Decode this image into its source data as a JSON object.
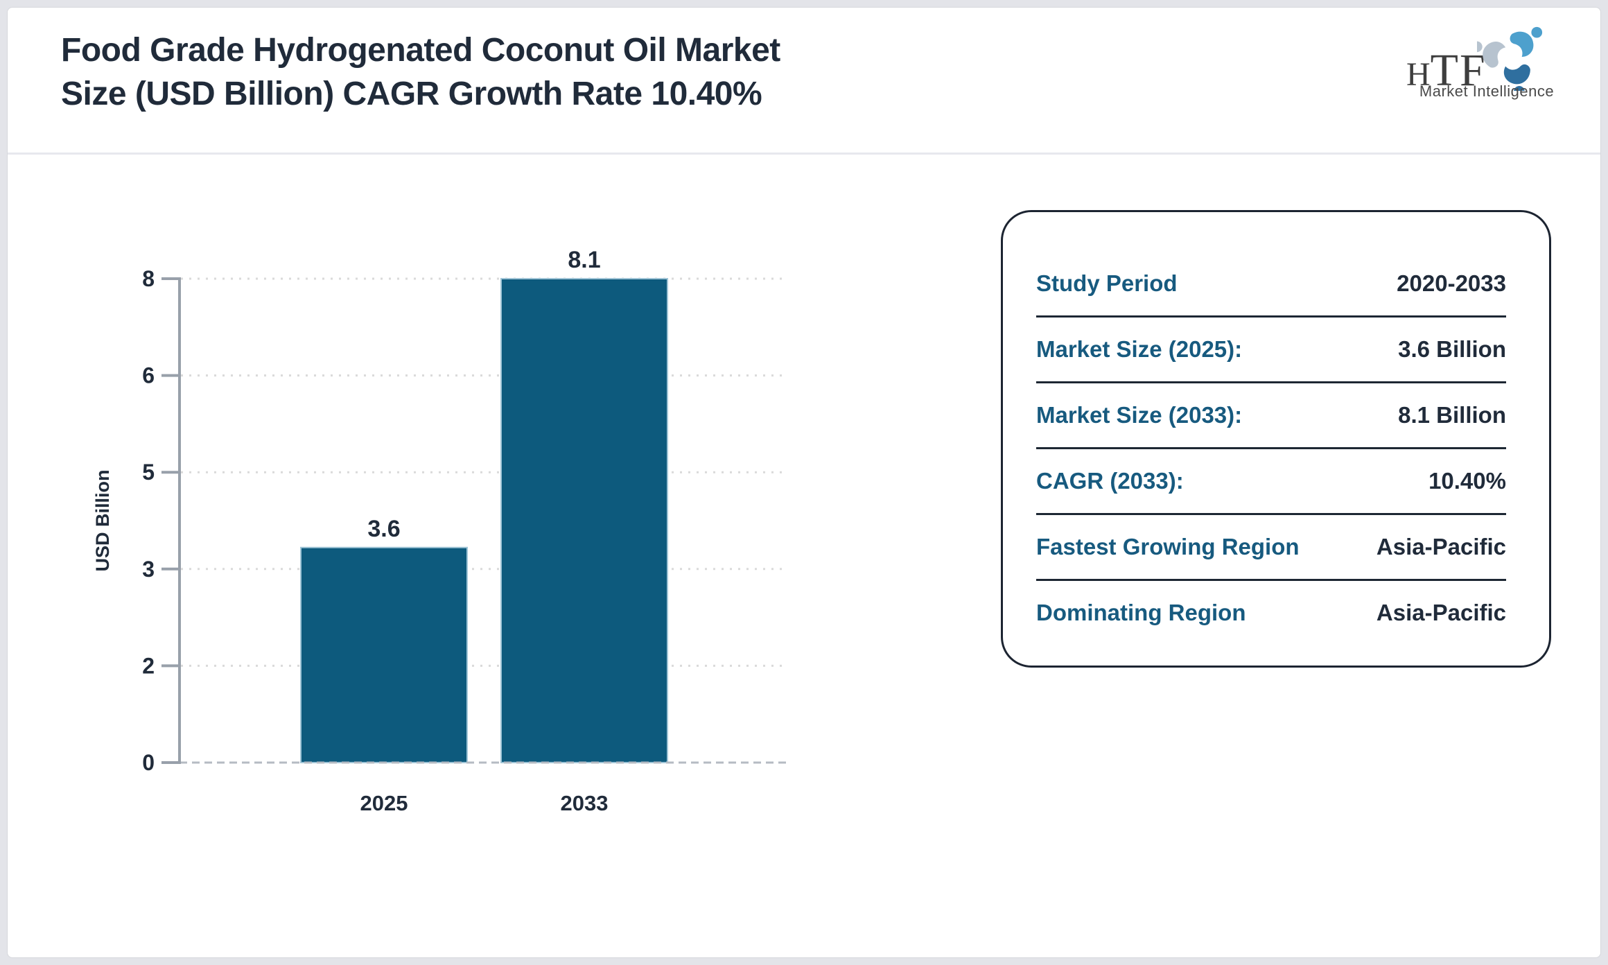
{
  "header": {
    "title_line1": "Food Grade Hydrogenated Coconut Oil Market",
    "title_line2": "Size (USD Billion) CAGR Growth Rate 10.40%",
    "logo": {
      "wordmark_h": "H",
      "wordmark_tf": "TF",
      "tagline": "Market Intelligence"
    }
  },
  "chart_data": {
    "type": "bar",
    "title": "",
    "categories": [
      "2025",
      "2033"
    ],
    "values": [
      3.6,
      8.1
    ],
    "bar_labels": [
      "3.6",
      "8.1"
    ],
    "xlabel": "",
    "ylabel": "USD Billion",
    "ylim": [
      0,
      8.1
    ],
    "yticks": [
      0,
      1.62,
      3.24,
      4.86,
      6.48,
      8.1
    ],
    "ytick_labels": [
      "0",
      "2",
      "3",
      "5",
      "6",
      "8"
    ],
    "grid": true,
    "legend": false,
    "bar_color": "#0d5a7d"
  },
  "info_panel": {
    "rows": [
      {
        "label": "Study Period",
        "value": "2020-2033"
      },
      {
        "label": "Market Size (2025):",
        "value": "3.6 Billion"
      },
      {
        "label": "Market Size (2033):",
        "value": "8.1 Billion"
      },
      {
        "label": "CAGR (2033):",
        "value": "10.40%"
      },
      {
        "label": "Fastest Growing Region",
        "value": "Asia-Pacific"
      },
      {
        "label": "Dominating Region",
        "value": "Asia-Pacific"
      }
    ]
  },
  "colors": {
    "text_navy": "#202b3a",
    "accent_teal": "#175a7f",
    "bar": "#0d5a7d",
    "logo_b1": "#4da0cd",
    "logo_b2": "#2f6f9f",
    "logo_b3": "#b7c3cf",
    "page_bg": "#e3e4e9"
  }
}
